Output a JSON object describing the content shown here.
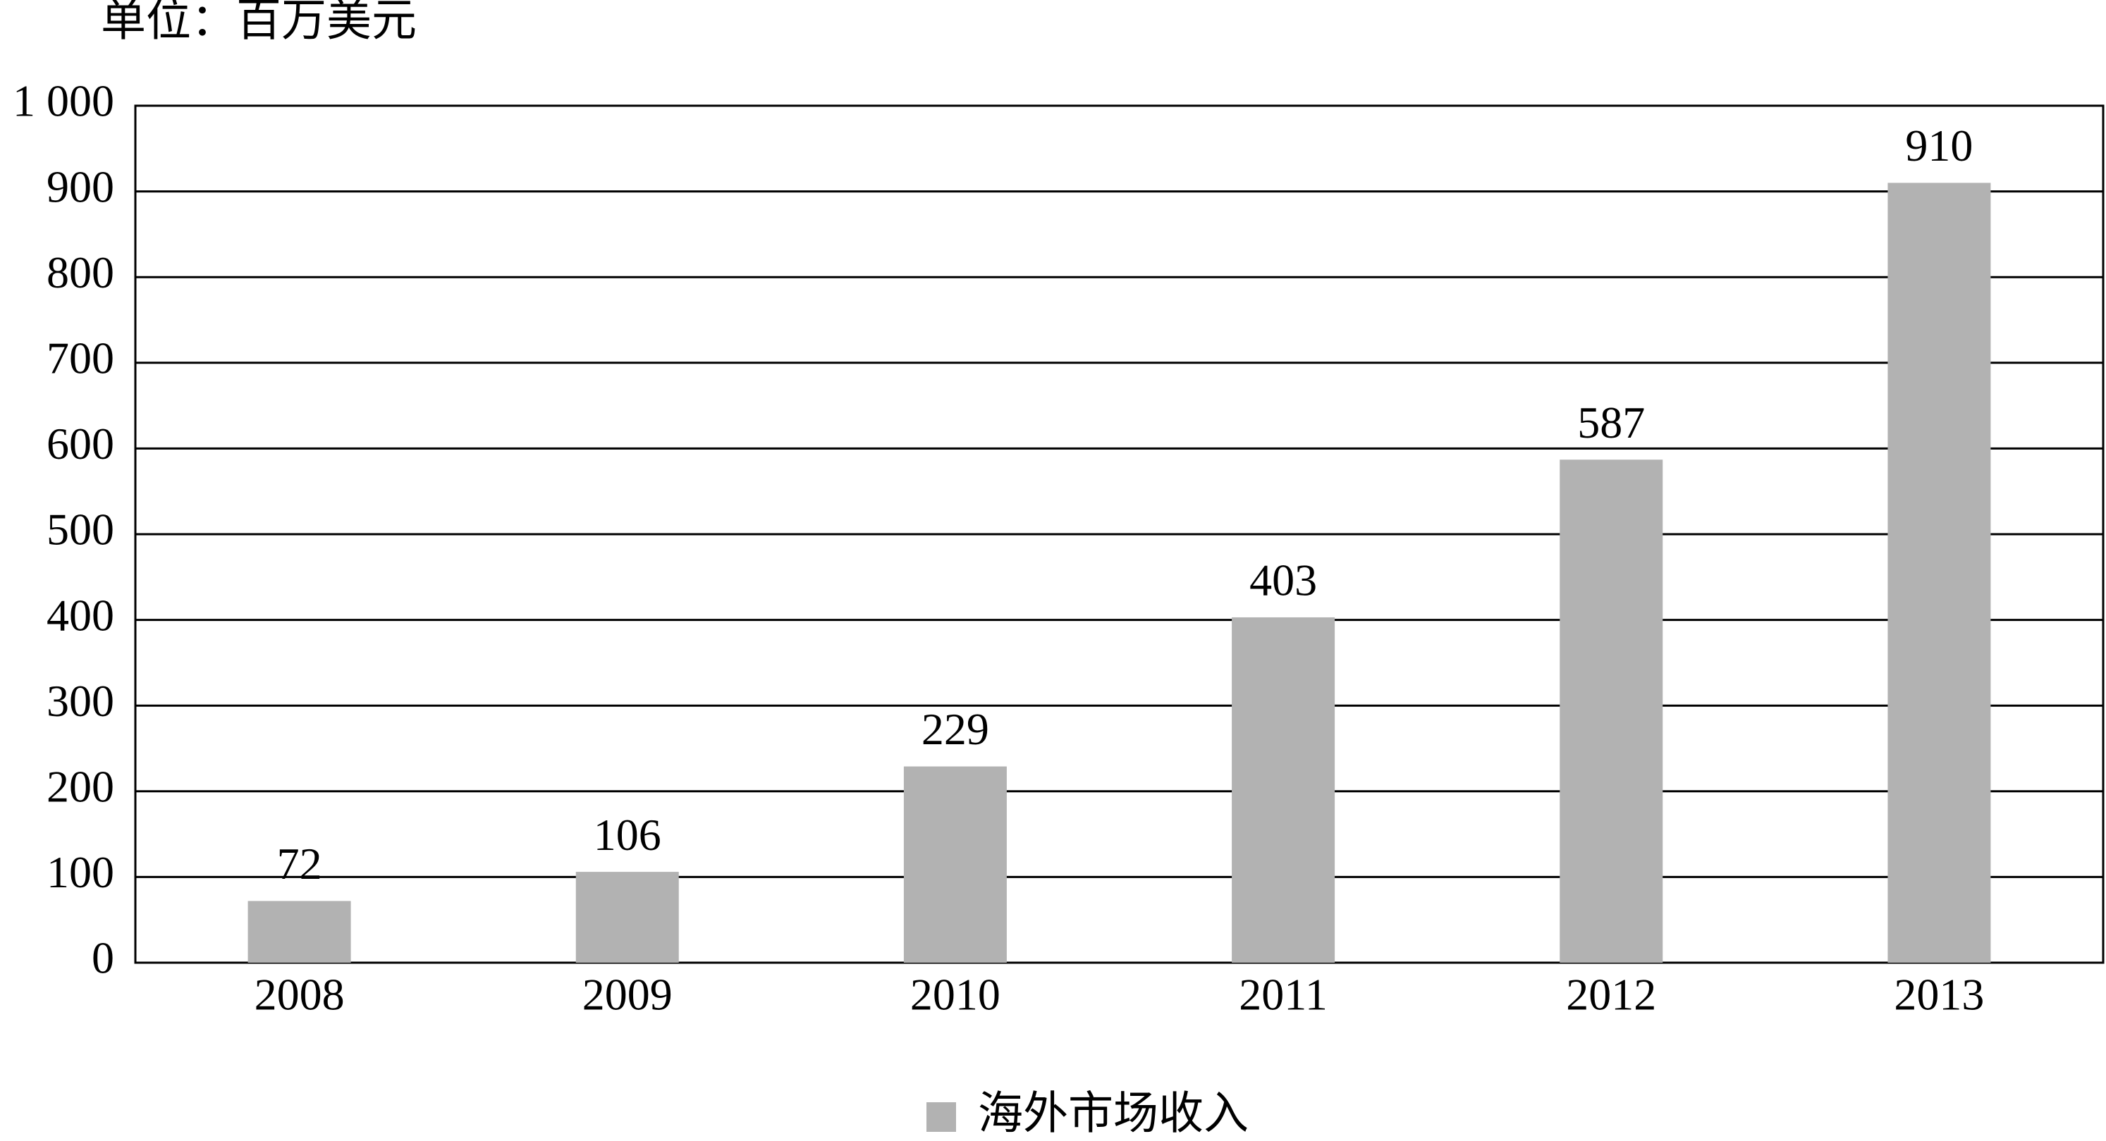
{
  "chart_data": {
    "type": "bar",
    "unit_label": "单位：百万美元",
    "categories": [
      "2008",
      "2009",
      "2010",
      "2011",
      "2012",
      "2013"
    ],
    "series": [
      {
        "name": "海外市场收入",
        "color": "#b2b2b2",
        "values": [
          72,
          106,
          229,
          403,
          587,
          910
        ]
      }
    ],
    "ylim": [
      0,
      1000
    ],
    "yticks": [
      0,
      100,
      200,
      300,
      400,
      500,
      600,
      700,
      800,
      900,
      {
        "value": 1000,
        "label": "1 000"
      }
    ],
    "grid": true,
    "legend": "bottom"
  }
}
